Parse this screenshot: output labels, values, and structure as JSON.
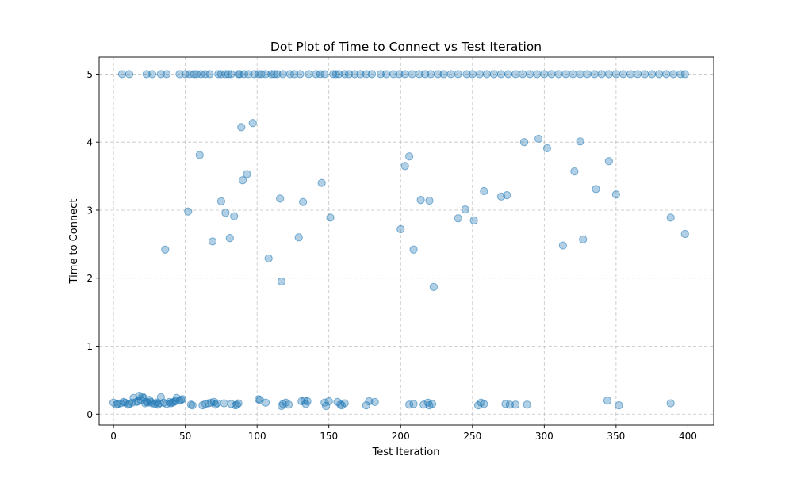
{
  "chart_data": {
    "type": "scatter",
    "title": "Dot Plot of Time to Connect vs Test Iteration",
    "xlabel": "Test Iteration",
    "ylabel": "Time to Connect",
    "xlim": [
      -10,
      418
    ],
    "ylim": [
      -0.16,
      5.25
    ],
    "xticks": [
      0,
      50,
      100,
      150,
      200,
      250,
      300,
      350,
      400
    ],
    "yticks": [
      0,
      1,
      2,
      3,
      4,
      5
    ],
    "xtick_labels": [
      "0",
      "50",
      "100",
      "150",
      "200",
      "250",
      "300",
      "350",
      "400"
    ],
    "ytick_labels": [
      "0",
      "1",
      "2",
      "3",
      "4",
      "5"
    ],
    "grid": true,
    "legend": false,
    "marker_color": "#1f77b4",
    "marker_alpha": 0.35,
    "series": [
      {
        "x": [
          0,
          2,
          3,
          5,
          7,
          8,
          10,
          11,
          13,
          14,
          16,
          17,
          18,
          19,
          20,
          21,
          22,
          23,
          24,
          25,
          26,
          27,
          29,
          30,
          31,
          32,
          33,
          35,
          37,
          39,
          40,
          41,
          42,
          43,
          44,
          46,
          47,
          48,
          54,
          55,
          62,
          64,
          66,
          68,
          70,
          71,
          72,
          77,
          82,
          85,
          86,
          87,
          101,
          102,
          106,
          117,
          118,
          120,
          122,
          131,
          133,
          134,
          135,
          147,
          148,
          150,
          156,
          158,
          159,
          161,
          176,
          178,
          182,
          206,
          209,
          216,
          219,
          220,
          222,
          254,
          256,
          258,
          273,
          276,
          280,
          288,
          344,
          352,
          388,
          6,
          11,
          23,
          27,
          33,
          37,
          46,
          50,
          53,
          56,
          58,
          61,
          64,
          67,
          73,
          75,
          78,
          80,
          82,
          87,
          88,
          91,
          94,
          98,
          101,
          103,
          106,
          110,
          112,
          114,
          118,
          123,
          126,
          130,
          136,
          141,
          144,
          147,
          153,
          155,
          157,
          161,
          164,
          168,
          172,
          176,
          180,
          186,
          190,
          195,
          199,
          203,
          208,
          213,
          217,
          221,
          226,
          230,
          235,
          240,
          246,
          250,
          255,
          260,
          265,
          270,
          275,
          280,
          285,
          290,
          295,
          300,
          305,
          310,
          315,
          320,
          325,
          330,
          335,
          340,
          345,
          350,
          355,
          360,
          365,
          370,
          375,
          380,
          385,
          390,
          395,
          398,
          36,
          52,
          60,
          69,
          75,
          78,
          81,
          84,
          89,
          90,
          93,
          97,
          108,
          116,
          117,
          129,
          132,
          145,
          151,
          200,
          203,
          206,
          209,
          214,
          220,
          223,
          240,
          245,
          251,
          258,
          270,
          274,
          286,
          296,
          302,
          313,
          321,
          325,
          327,
          336,
          345,
          350,
          388,
          398
        ],
        "y": [
          0.17,
          0.14,
          0.15,
          0.16,
          0.18,
          0.17,
          0.14,
          0.15,
          0.17,
          0.24,
          0.18,
          0.19,
          0.27,
          0.21,
          0.26,
          0.24,
          0.16,
          0.18,
          0.17,
          0.21,
          0.18,
          0.16,
          0.15,
          0.17,
          0.14,
          0.16,
          0.25,
          0.17,
          0.15,
          0.18,
          0.16,
          0.17,
          0.18,
          0.19,
          0.24,
          0.2,
          0.21,
          0.22,
          0.14,
          0.13,
          0.13,
          0.15,
          0.16,
          0.17,
          0.18,
          0.14,
          0.16,
          0.16,
          0.15,
          0.13,
          0.14,
          0.16,
          0.22,
          0.21,
          0.17,
          0.12,
          0.15,
          0.17,
          0.14,
          0.19,
          0.2,
          0.15,
          0.19,
          0.17,
          0.12,
          0.19,
          0.18,
          0.14,
          0.13,
          0.16,
          0.13,
          0.19,
          0.18,
          0.14,
          0.15,
          0.14,
          0.17,
          0.13,
          0.15,
          0.13,
          0.17,
          0.15,
          0.15,
          0.14,
          0.14,
          0.14,
          0.2,
          0.13,
          0.16,
          5,
          5,
          5,
          5,
          5,
          5,
          5,
          5,
          5,
          5,
          5,
          5,
          5,
          5,
          5,
          5,
          5,
          5,
          5,
          5,
          5,
          5,
          5,
          5,
          5,
          5,
          5,
          5,
          5,
          5,
          5,
          5,
          5,
          5,
          5,
          5,
          5,
          5,
          5,
          5,
          5,
          5,
          5,
          5,
          5,
          5,
          5,
          5,
          5,
          5,
          5,
          5,
          5,
          5,
          5,
          5,
          5,
          5,
          5,
          5,
          5,
          5,
          5,
          5,
          5,
          5,
          5,
          5,
          5,
          5,
          5,
          5,
          5,
          5,
          5,
          5,
          5,
          5,
          5,
          5,
          5,
          5,
          5,
          5,
          5,
          5,
          5,
          5,
          5,
          5,
          5,
          5,
          2.42,
          2.98,
          3.81,
          2.54,
          3.13,
          2.96,
          2.59,
          2.91,
          4.22,
          3.44,
          3.53,
          4.28,
          2.29,
          3.17,
          1.95,
          2.6,
          3.12,
          3.4,
          2.89,
          2.72,
          3.65,
          3.79,
          2.42,
          3.15,
          3.14,
          1.87,
          2.88,
          3.01,
          2.85,
          3.28,
          3.2,
          3.22,
          4.0,
          4.05,
          3.91,
          2.48,
          3.57,
          4.01,
          2.57,
          3.31,
          3.72,
          3.23,
          2.89,
          2.65
        ]
      }
    ]
  }
}
